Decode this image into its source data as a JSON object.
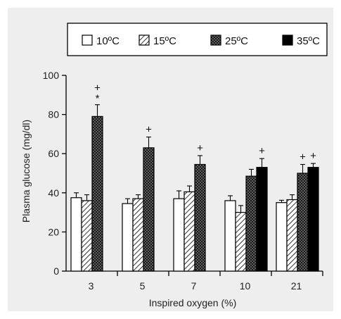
{
  "chart_data": {
    "type": "bar",
    "title": "",
    "xlabel": "Inspired oxygen (%)",
    "ylabel": "Plasma glucose (mg/dl)",
    "ylim": [
      0,
      100
    ],
    "yticks": [
      "0",
      "20",
      "40",
      "60",
      "80",
      "100"
    ],
    "categories": [
      "3",
      "5",
      "7",
      "10",
      "21"
    ],
    "legend_position": "top",
    "series": [
      {
        "name": "10ºC",
        "pattern": "white",
        "color": "#ffffff",
        "values": [
          37.5,
          34.5,
          37,
          36,
          35
        ],
        "errors": [
          2.5,
          2.5,
          4,
          2.5,
          1.2
        ]
      },
      {
        "name": "15ºC",
        "pattern": "diagonal-hatch",
        "color": "#ffffff",
        "values": [
          36,
          37,
          40.5,
          30,
          36.5
        ],
        "errors": [
          3,
          2,
          3,
          3.5,
          2.5
        ]
      },
      {
        "name": "25ºC",
        "pattern": "crosshatch",
        "color": "#555555",
        "values": [
          79,
          63,
          54.5,
          48.5,
          50
        ],
        "errors": [
          6,
          5.5,
          4.5,
          3.5,
          4.5
        ]
      },
      {
        "name": "35ºC",
        "pattern": "solid-black",
        "color": "#000000",
        "values": [
          null,
          null,
          null,
          53,
          53
        ],
        "errors": [
          null,
          null,
          null,
          4.5,
          2
        ]
      }
    ],
    "annotations": [
      {
        "category": "3",
        "series": "25ºC",
        "text": "*"
      },
      {
        "category": "3",
        "series": "25ºC",
        "text": "+"
      },
      {
        "category": "5",
        "series": "25ºC",
        "text": "+"
      },
      {
        "category": "7",
        "series": "25ºC",
        "text": "+"
      },
      {
        "category": "10",
        "series": "35ºC",
        "text": "+"
      },
      {
        "category": "21",
        "series": "25ºC",
        "text": "+"
      },
      {
        "category": "21",
        "series": "35ºC",
        "text": "+"
      }
    ]
  }
}
